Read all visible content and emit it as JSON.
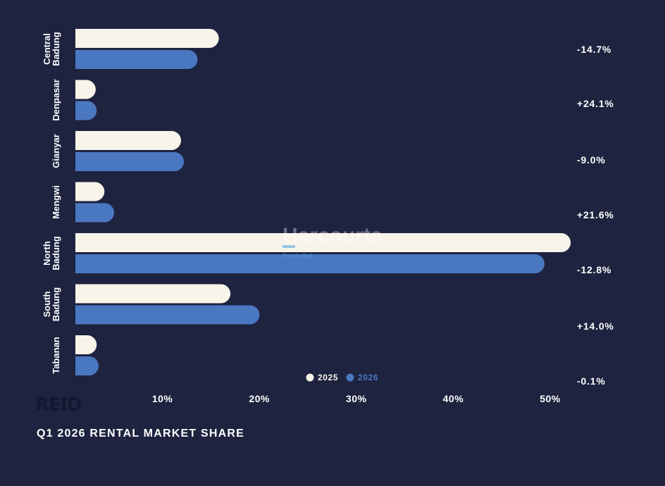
{
  "footer": {
    "title": "Q1 2026 RENTAL MARKET SHARE",
    "logo": "REID"
  },
  "watermark": {
    "name": "Harcourts",
    "subtitle": "Purple Bali"
  },
  "colors": {
    "background": "#1e2340",
    "series_2025": "#f8f4ea",
    "series_2026": "#4a78c0",
    "text": "#ffffff"
  },
  "chart_data": {
    "type": "bar",
    "orientation": "horizontal",
    "categories": [
      [
        "Central",
        "Badung"
      ],
      [
        "Denpasar"
      ],
      [
        "Gianyar"
      ],
      [
        "Mengwi"
      ],
      [
        "North",
        "Badung"
      ],
      [
        "South",
        "Badung"
      ],
      [
        "Tabanan"
      ]
    ],
    "series": [
      {
        "name": "2025",
        "values": [
          14.8,
          2.1,
          10.9,
          3.0,
          51.1,
          16.0,
          2.2
        ]
      },
      {
        "name": "2026",
        "values": [
          12.6,
          2.2,
          11.2,
          4.0,
          48.4,
          19.0,
          2.4
        ]
      }
    ],
    "change_labels": [
      "-14.7%",
      "+24.1%",
      "-9.0%",
      "+21.6%",
      "-12.8%",
      "+14.0%",
      "-0.1%"
    ],
    "x_ticks": [
      "10%",
      "20%",
      "30%",
      "40%",
      "50%"
    ],
    "x_tick_values": [
      10,
      20,
      30,
      40,
      50
    ],
    "xlim": [
      0,
      50
    ],
    "legend": [
      "2025",
      "2026"
    ],
    "legend_position": "bottom-center",
    "grid": false
  }
}
